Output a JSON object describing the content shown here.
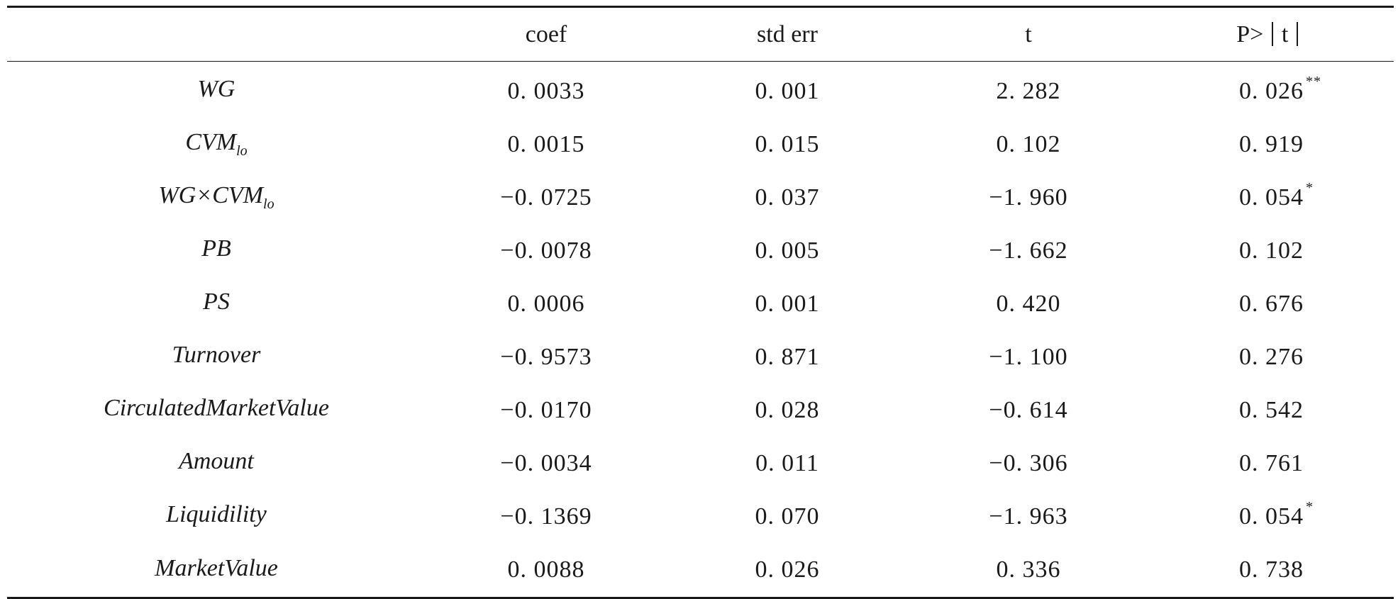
{
  "table": {
    "headers": {
      "variable": "",
      "coef": "coef",
      "std_err": "std err",
      "t": "t",
      "p_prefix": "P>",
      "p_inner": "t"
    },
    "rows": [
      {
        "name": "WG",
        "sub": "",
        "coef": "0. 0033",
        "std_err": "0. 001",
        "t": "2. 282",
        "p": "0. 026",
        "stars": "**"
      },
      {
        "name": "CVM",
        "sub": "lo",
        "coef": "0. 0015",
        "std_err": "0. 015",
        "t": "0. 102",
        "p": "0. 919",
        "stars": ""
      },
      {
        "name": "WG×CVM",
        "sub": "lo",
        "coef": "−0. 0725",
        "std_err": "0. 037",
        "t": "−1. 960",
        "p": "0. 054",
        "stars": "*"
      },
      {
        "name": "PB",
        "sub": "",
        "coef": "−0. 0078",
        "std_err": "0. 005",
        "t": "−1. 662",
        "p": "0. 102",
        "stars": ""
      },
      {
        "name": "PS",
        "sub": "",
        "coef": "0. 0006",
        "std_err": "0. 001",
        "t": "0. 420",
        "p": "0. 676",
        "stars": ""
      },
      {
        "name": "Turnover",
        "sub": "",
        "coef": "−0. 9573",
        "std_err": "0. 871",
        "t": "−1. 100",
        "p": "0. 276",
        "stars": ""
      },
      {
        "name": "CirculatedMarketValue",
        "sub": "",
        "coef": "−0. 0170",
        "std_err": "0. 028",
        "t": "−0. 614",
        "p": "0. 542",
        "stars": ""
      },
      {
        "name": "Amount",
        "sub": "",
        "coef": "−0. 0034",
        "std_err": "0. 011",
        "t": "−0. 306",
        "p": "0. 761",
        "stars": ""
      },
      {
        "name": "Liquidility",
        "sub": "",
        "coef": "−0. 1369",
        "std_err": "0. 070",
        "t": "−1. 963",
        "p": "0. 054",
        "stars": "*"
      },
      {
        "name": "MarketValue",
        "sub": "",
        "coef": "0. 0088",
        "std_err": "0. 026",
        "t": "0. 336",
        "p": "0. 738",
        "stars": ""
      }
    ]
  }
}
